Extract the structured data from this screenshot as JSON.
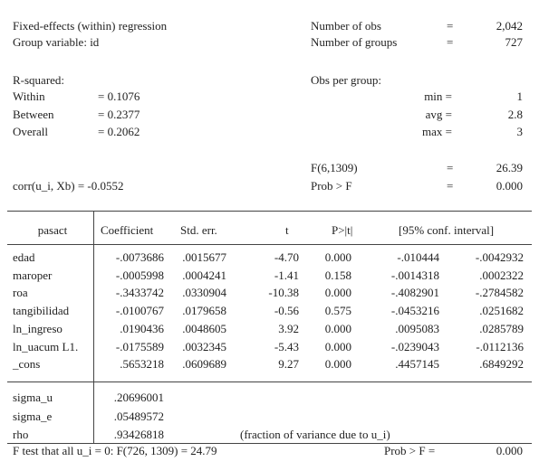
{
  "header": {
    "title": "Fixed-effects (within) regression",
    "group_var": "Group variable: id",
    "stats": [
      [
        "Number of obs",
        "=",
        "2,042"
      ],
      [
        "Number of groups",
        "=",
        "727"
      ]
    ],
    "rsq_label": "R-squared:",
    "rsq": [
      [
        "Within",
        "= 0.1076"
      ],
      [
        "Between",
        "= 0.2377"
      ],
      [
        "Overall",
        "= 0.2062"
      ]
    ],
    "obs_label": "Obs per group:",
    "obs": [
      [
        "min =",
        "1"
      ],
      [
        "avg =",
        "2.8"
      ],
      [
        "max =",
        "3"
      ]
    ],
    "ftest": [
      [
        "F(6,1309)",
        "=",
        "26.39"
      ],
      [
        "Prob > F",
        "=",
        "0.000"
      ]
    ],
    "corr": "corr(u_i, Xb) = -0.0552"
  },
  "table": {
    "columns": [
      "pasact",
      "Coefficient",
      "Std. err.",
      "t",
      "P>|t|",
      "[95% conf. interval]"
    ],
    "rows": [
      [
        "edad",
        "-.0073686",
        ".0015677",
        "-4.70",
        "0.000",
        "-.010444",
        "-.0042932"
      ],
      [
        "maroper",
        "-.0005998",
        ".0004241",
        "-1.41",
        "0.158",
        "-.0014318",
        ".0002322"
      ],
      [
        "roa",
        "-.3433742",
        ".0330904",
        "-10.38",
        "0.000",
        "-.4082901",
        "-.2784582"
      ],
      [
        "tangibilidad",
        "-.0100767",
        ".0179658",
        "-0.56",
        "0.575",
        "-.0453216",
        ".0251682"
      ],
      [
        "ln_ingreso",
        ".0190436",
        ".0048605",
        "3.92",
        "0.000",
        ".0095083",
        ".0285789"
      ],
      [
        "ln_uacum L1.",
        "-.0175589",
        ".0032345",
        "-5.43",
        "0.000",
        "-.0239043",
        "-.0112136"
      ],
      [
        "_cons",
        ".5653218",
        ".0609689",
        "9.27",
        "0.000",
        ".4457145",
        ".6849292"
      ]
    ],
    "sigma": [
      [
        "sigma_u",
        ".20696001"
      ],
      [
        "sigma_e",
        ".05489572"
      ],
      [
        "rho",
        ".93426818",
        "(fraction of variance due to u_i)"
      ]
    ],
    "footer": [
      "F test that all u_i = 0: F(726, 1309) = 24.79",
      "Prob > F =",
      "0.000"
    ]
  }
}
